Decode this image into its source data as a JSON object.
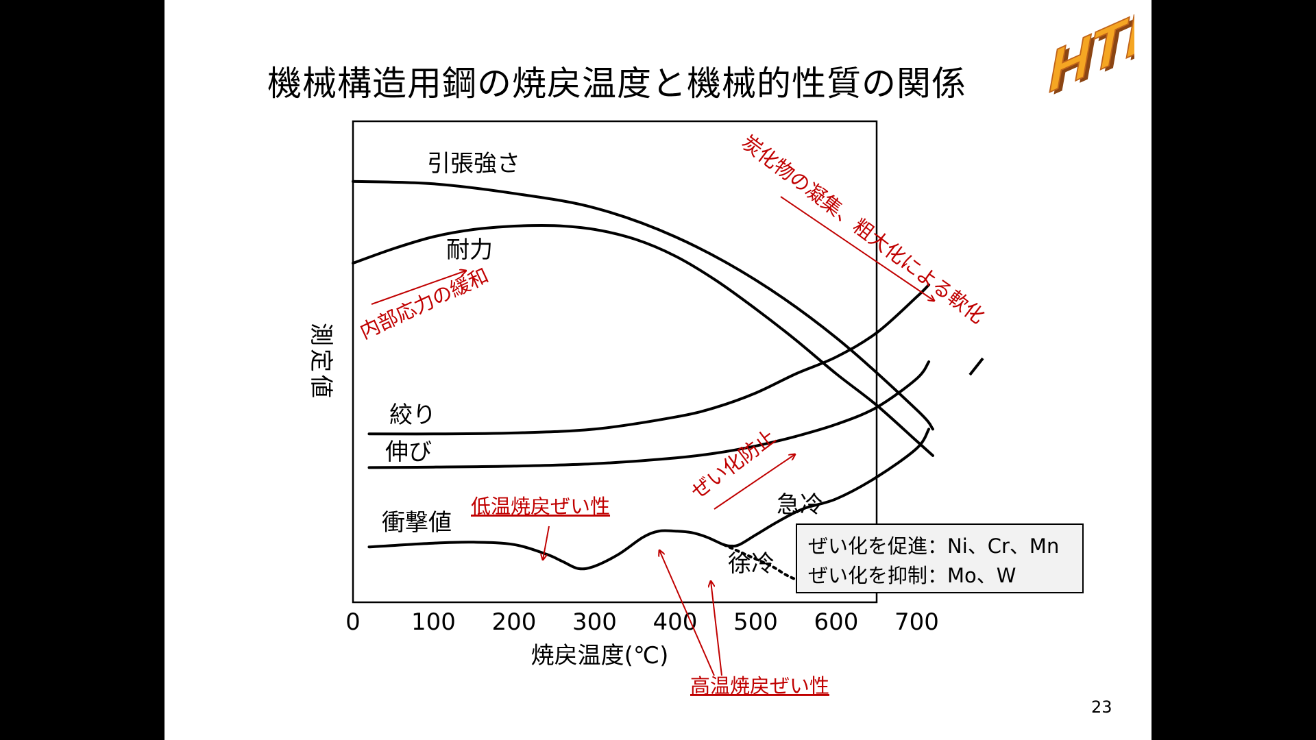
{
  "slide": {
    "title": "機械構造用鋼の焼戻温度と機械的性質の関係",
    "page_number": "23",
    "logo_text": "HTH"
  },
  "legend_box": {
    "promote": "ぜい化を促進：Ni、Cr、Mn",
    "suppress": "ぜい化を抑制：Mo、W"
  },
  "chart_data": {
    "type": "line",
    "xlabel": "焼戻温度(℃)",
    "ylabel": "測定値",
    "xlim": [
      0,
      800
    ],
    "ylim": [
      0,
      100
    ],
    "xticks": [
      0,
      100,
      200,
      300,
      400,
      500,
      600,
      700
    ],
    "xtick_labels": [
      "0",
      "100",
      "200",
      "300",
      "400",
      "500",
      "600",
      "700"
    ],
    "y_ticks_shown": false,
    "grid": false,
    "series": [
      {
        "name": "引張強さ",
        "style": "solid",
        "x": [
          0,
          100,
          200,
          300,
          400,
          500,
          600,
          700,
          720
        ],
        "y": [
          87.5,
          87,
          85,
          82,
          76,
          67,
          55,
          40,
          36
        ]
      },
      {
        "name": "耐力",
        "style": "solid",
        "x": [
          0,
          50,
          100,
          150,
          200,
          250,
          300,
          350,
          400,
          450,
          500,
          550,
          600,
          650,
          700,
          720
        ],
        "y": [
          70.5,
          73.5,
          76,
          77.5,
          78.2,
          78.3,
          77.5,
          75.5,
          72,
          67,
          61,
          54.5,
          47.5,
          41,
          33.5,
          30.5
        ]
      },
      {
        "name": "絞り",
        "style": "solid",
        "x": [
          20,
          100,
          200,
          300,
          400,
          450,
          500,
          550,
          600,
          650,
          700,
          715
        ],
        "y": [
          35,
          35,
          35.2,
          36,
          38.5,
          40.5,
          43.5,
          47.5,
          51,
          56,
          63.5,
          66
        ]
      },
      {
        "name": "伸び",
        "style": "solid",
        "x": [
          20,
          100,
          200,
          300,
          400,
          450,
          500,
          550,
          600,
          650,
          700,
          715
        ],
        "y": [
          28,
          28.1,
          28.3,
          28.8,
          30,
          31,
          32.5,
          34.5,
          37,
          40.5,
          46.5,
          50
        ]
      },
      {
        "name": "衝撃値",
        "label_note": "急冷",
        "style": "solid",
        "x": [
          20,
          100,
          150,
          200,
          240,
          260,
          280,
          300,
          330,
          360,
          380,
          400,
          420,
          440,
          460,
          470,
          480,
          500,
          530,
          560,
          600,
          650,
          700,
          715
        ],
        "y": [
          11.5,
          12.3,
          12.5,
          12,
          10,
          8.5,
          7,
          7.5,
          10,
          13.5,
          14.8,
          14.8,
          14.5,
          13.5,
          12,
          11.7,
          12,
          14,
          17,
          19.5,
          21.5,
          26,
          32,
          36
        ]
      },
      {
        "name": "徐冷",
        "style": "dotted",
        "x": [
          460,
          480,
          500,
          520,
          540,
          560,
          580,
          600
        ],
        "y": [
          12,
          10.5,
          9,
          7.5,
          5.5,
          4.2,
          3.8,
          3.5
        ]
      }
    ],
    "annotations": [
      {
        "text": "炭化物の凝集、粗大化による軟化",
        "color": "#c00000"
      },
      {
        "text": "内部応力の緩和",
        "color": "#c00000"
      },
      {
        "text": "ぜい化防止",
        "color": "#c00000"
      },
      {
        "text": "低温焼戻ぜい性",
        "color": "#c00000",
        "underline": true
      },
      {
        "text": "高温焼戻ぜい性",
        "color": "#c00000",
        "underline": true
      }
    ]
  },
  "colors": {
    "curve": "#000000",
    "annotation": "#c00000",
    "logo_face": "#f5a623",
    "logo_shadow": "#8b4513"
  }
}
